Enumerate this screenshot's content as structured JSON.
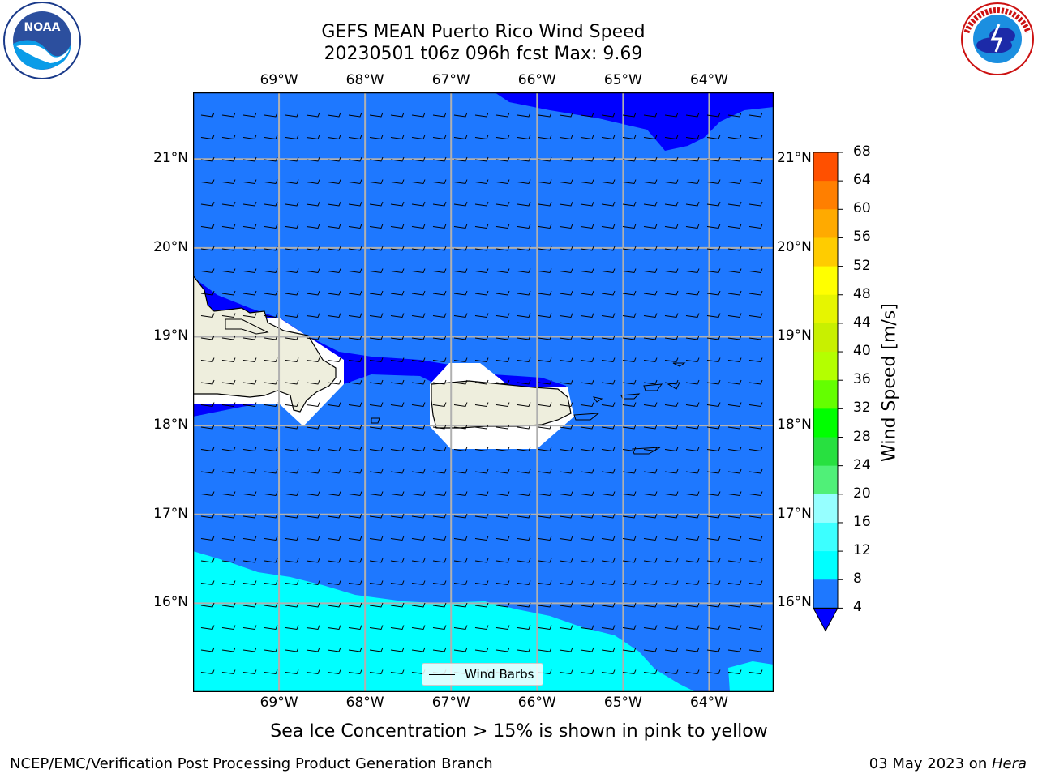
{
  "title": {
    "line1": "GEFS MEAN Puerto Rico Wind Speed",
    "line2": "20230501 t06z 096h fcst   Max: 9.69"
  },
  "map": {
    "lon_labels": [
      "69°W",
      "68°W",
      "67°W",
      "66°W",
      "65°W",
      "64°W"
    ],
    "lat_labels": [
      "21°N",
      "20°N",
      "19°N",
      "18°N",
      "17°N",
      "16°N"
    ],
    "lon_range": [
      -70.0,
      -63.25
    ],
    "lat_range": [
      15.0,
      21.75
    ],
    "wind_field": "northwest-pointing barbs from the east",
    "legend_label": "Wind Barbs",
    "fill_colors": {
      "ocean_4_8": "#1e78ff",
      "calm_lt_4": "#0000ff",
      "band_8_12": "#00ffff",
      "land": "#eeeedd"
    }
  },
  "colorbar": {
    "title": "Wind Speed [m/s]",
    "ticks": [
      "4",
      "8",
      "12",
      "16",
      "20",
      "24",
      "28",
      "32",
      "36",
      "40",
      "44",
      "48",
      "52",
      "56",
      "60",
      "64",
      "68"
    ],
    "colors": [
      "#1e78ff",
      "#00ffff",
      "#3cffff",
      "#96ffff",
      "#50f078",
      "#28e040",
      "#00ff00",
      "#64ff00",
      "#b4ff00",
      "#c8f000",
      "#e6f500",
      "#ffff00",
      "#ffcc00",
      "#ffaa00",
      "#ff7f00",
      "#ff5000",
      "#ff2a00",
      "#ff0000"
    ],
    "under_color": "#0000ff"
  },
  "footer": {
    "note": "Sea Ice Concentration > 15% is shown in pink to yellow",
    "left": "NCEP/EMC/Verification Post Processing Product Generation Branch",
    "right_date": "03 May 2023 on ",
    "right_host": "Hera"
  },
  "logos": {
    "noaa_text": "NOAA",
    "nws_text": "NATIONAL WEATHER SERVICE"
  }
}
